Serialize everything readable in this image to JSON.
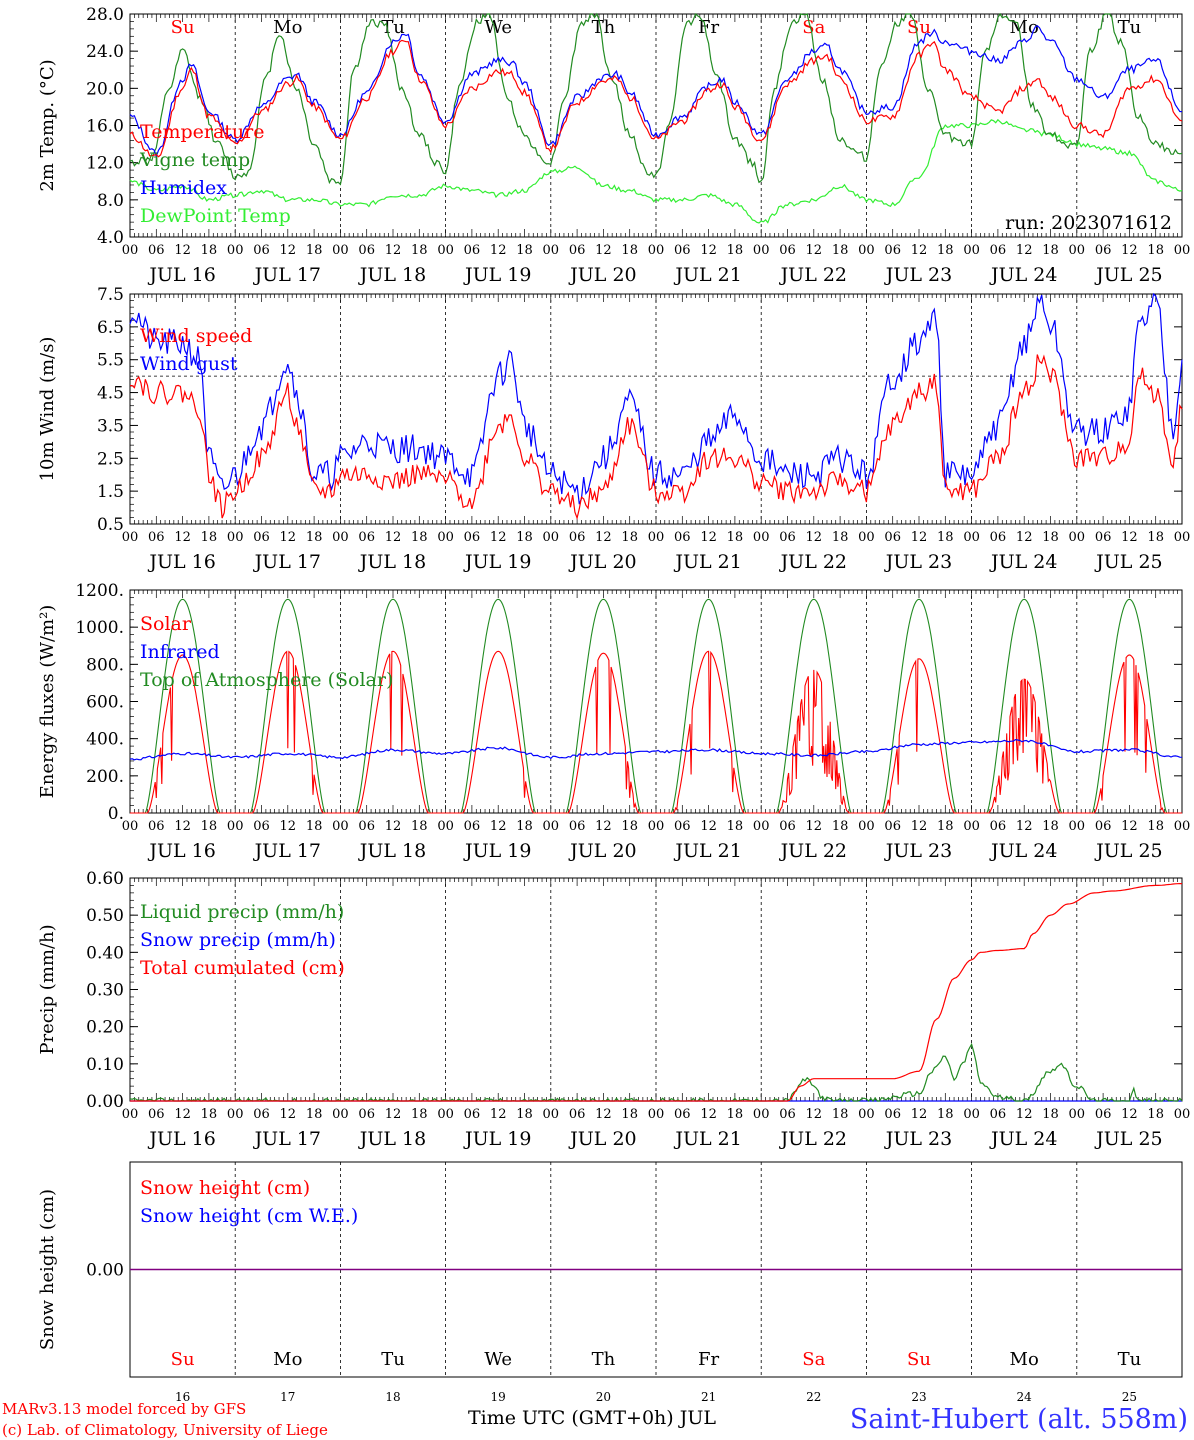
{
  "meta": {
    "run_label": "run: 2023071612",
    "footer_left_1": "MARv3.13 model forced by GFS",
    "footer_left_2": "(c) Lab. of Climatology, University of Liege",
    "footer_xlabel": "Time UTC (GMT+0h) JUL",
    "station": "Saint-Hubert (alt. 558m)"
  },
  "colors": {
    "red": "#ff0000",
    "green": "#228b22",
    "blue": "#0000ff",
    "lightgreen": "#33ee33",
    "purple": "#800080"
  },
  "days": {
    "weekday_labels": [
      "Su",
      "Mo",
      "Tu",
      "We",
      "Th",
      "Fr",
      "Sa",
      "Su",
      "Mo",
      "Tu"
    ],
    "weekend_flags": [
      true,
      false,
      false,
      false,
      false,
      false,
      true,
      true,
      false,
      false
    ],
    "date_labels": [
      "JUL 16",
      "JUL 17",
      "JUL 18",
      "JUL 19",
      "JUL 20",
      "JUL 21",
      "JUL 22",
      "JUL 23",
      "JUL 24",
      "JUL 25"
    ],
    "day_numbers": [
      "16",
      "17",
      "18",
      "19",
      "20",
      "21",
      "22",
      "23",
      "24",
      "25"
    ],
    "hour_labels": [
      "00",
      "06",
      "12",
      "18"
    ],
    "end_hour_label": "00"
  },
  "chart_data": [
    {
      "type": "line",
      "panel": "temperature",
      "ylabel": "2m Temp. (°C)",
      "ylim": [
        4.0,
        28.0
      ],
      "yticks": [
        "4.0",
        "8.0",
        "12.0",
        "16.0",
        "20.0",
        "24.0",
        "28.0"
      ],
      "x_unit": "hours since JUL 16 00 UTC",
      "series": [
        {
          "name": "Temperature",
          "color": "#ff0000",
          "x": [
            0,
            6,
            12,
            14,
            18,
            24,
            30,
            36,
            38,
            42,
            48,
            54,
            60,
            63,
            66,
            72,
            78,
            84,
            87,
            90,
            96,
            102,
            108,
            111,
            114,
            120,
            126,
            132,
            135,
            138,
            144,
            150,
            156,
            159,
            162,
            168,
            174,
            180,
            183,
            186,
            192,
            198,
            204,
            207,
            210,
            216,
            222,
            228,
            234,
            240
          ],
          "y": [
            15.0,
            12.5,
            20.0,
            22.0,
            17.0,
            14.0,
            17.5,
            20.5,
            21.0,
            18.0,
            14.5,
            19.0,
            24.0,
            25.3,
            21.0,
            16.0,
            20.0,
            21.8,
            21.5,
            19.5,
            13.5,
            18.5,
            20.8,
            21.0,
            19.0,
            14.5,
            16.5,
            19.8,
            20.5,
            18.0,
            14.5,
            20.5,
            23.0,
            23.5,
            21.0,
            16.5,
            17.0,
            23.5,
            25.0,
            22.0,
            19.0,
            17.5,
            20.0,
            21.0,
            19.0,
            16.0,
            15.0,
            20.0,
            21.0,
            16.5
          ]
        },
        {
          "name": "Vigne temp",
          "color": "#228b22",
          "x": [
            0,
            5,
            9,
            12,
            16,
            20,
            24,
            27,
            31,
            34,
            38,
            42,
            46,
            48,
            51,
            55,
            58,
            62,
            66,
            70,
            72,
            75,
            79,
            82,
            86,
            90,
            94,
            96,
            99,
            103,
            106,
            110,
            114,
            118,
            120,
            123,
            127,
            130,
            134,
            138,
            142,
            144,
            147,
            151,
            154,
            158,
            162,
            166,
            168,
            171,
            175,
            178,
            182,
            186,
            190,
            192,
            195,
            199,
            202,
            206,
            210,
            214,
            216,
            219,
            223,
            226,
            230,
            234,
            238,
            240
          ],
          "y": [
            12.0,
            12.5,
            20.0,
            24.0,
            19.0,
            14.0,
            10.5,
            11.0,
            21.0,
            26.0,
            20.0,
            14.0,
            10.0,
            10.0,
            22.0,
            27.0,
            27.0,
            20.0,
            15.0,
            12.0,
            11.0,
            20.0,
            27.0,
            28.0,
            19.0,
            15.0,
            12.5,
            12.0,
            19.0,
            27.0,
            28.0,
            21.0,
            15.0,
            11.0,
            10.5,
            16.0,
            27.0,
            28.0,
            21.0,
            14.5,
            12.0,
            10.0,
            20.0,
            27.0,
            28.0,
            21.0,
            14.5,
            13.0,
            12.5,
            22.0,
            27.0,
            28.0,
            20.0,
            15.0,
            14.0,
            14.0,
            24.0,
            28.0,
            27.0,
            18.0,
            15.0,
            14.0,
            14.0,
            24.0,
            28.0,
            25.0,
            17.0,
            14.0,
            13.0,
            13.0
          ]
        },
        {
          "name": "Humidex",
          "color": "#0000ff",
          "x": [
            0,
            6,
            12,
            14,
            18,
            24,
            30,
            36,
            38,
            42,
            48,
            54,
            60,
            63,
            66,
            72,
            78,
            84,
            87,
            90,
            96,
            102,
            108,
            111,
            114,
            120,
            126,
            132,
            135,
            138,
            144,
            150,
            156,
            159,
            162,
            168,
            174,
            180,
            183,
            186,
            192,
            198,
            204,
            207,
            210,
            216,
            222,
            228,
            234,
            240
          ],
          "y": [
            17.0,
            13.0,
            21.0,
            22.5,
            17.5,
            14.5,
            18.0,
            21.0,
            21.5,
            18.5,
            15.0,
            19.5,
            25.0,
            26.0,
            21.5,
            16.5,
            21.5,
            23.0,
            22.8,
            20.5,
            14.0,
            19.0,
            21.2,
            21.5,
            19.5,
            15.0,
            17.0,
            20.2,
            21.0,
            18.5,
            15.0,
            21.0,
            24.0,
            24.5,
            22.0,
            17.5,
            18.0,
            25.0,
            26.0,
            25.0,
            24.0,
            23.0,
            25.0,
            26.5,
            25.0,
            21.0,
            19.0,
            22.0,
            23.0,
            17.5
          ]
        },
        {
          "name": "DewPoint Temp",
          "color": "#33ee33",
          "x": [
            0,
            6,
            12,
            18,
            24,
            30,
            36,
            42,
            48,
            54,
            60,
            66,
            72,
            78,
            84,
            90,
            96,
            102,
            108,
            114,
            120,
            126,
            132,
            138,
            144,
            150,
            156,
            162,
            168,
            174,
            180,
            186,
            192,
            198,
            204,
            210,
            216,
            222,
            228,
            234,
            240
          ],
          "y": [
            10.0,
            9.0,
            9.5,
            8.0,
            8.5,
            9.0,
            8.0,
            8.0,
            7.5,
            7.5,
            8.5,
            8.5,
            9.5,
            9.0,
            8.5,
            9.0,
            11.0,
            11.5,
            9.5,
            9.0,
            8.0,
            8.0,
            8.5,
            7.5,
            5.5,
            7.5,
            8.0,
            9.5,
            8.0,
            7.5,
            10.5,
            16.0,
            16.0,
            16.5,
            15.5,
            15.0,
            14.0,
            13.5,
            13.0,
            10.0,
            9.0
          ]
        }
      ]
    },
    {
      "type": "line",
      "panel": "wind",
      "ylabel": "10m Wind (m/s)",
      "ylim": [
        0.5,
        7.5
      ],
      "yticks": [
        "0.5",
        "1.5",
        "2.5",
        "3.5",
        "4.5",
        "5.5",
        "6.5",
        "7.5"
      ],
      "reference_line": 5.0,
      "x_unit": "hours since JUL 16 00 UTC",
      "series": [
        {
          "name": "Wind speed",
          "color": "#ff0000",
          "x": [
            0,
            6,
            12,
            16,
            18,
            21,
            24,
            30,
            36,
            38,
            42,
            46,
            48,
            54,
            60,
            66,
            72,
            78,
            84,
            87,
            90,
            96,
            102,
            108,
            114,
            120,
            126,
            132,
            138,
            144,
            150,
            156,
            162,
            168,
            174,
            180,
            184,
            186,
            190,
            192,
            198,
            204,
            208,
            210,
            216,
            222,
            228,
            230,
            234,
            238,
            240
          ],
          "y": [
            5.0,
            4.5,
            4.5,
            4.0,
            2.0,
            1.0,
            1.5,
            2.5,
            4.5,
            3.5,
            1.5,
            1.5,
            2.0,
            2.0,
            1.8,
            2.0,
            1.8,
            1.2,
            3.5,
            3.8,
            2.5,
            1.5,
            1.0,
            1.5,
            3.5,
            1.5,
            1.5,
            2.5,
            2.5,
            1.8,
            1.5,
            1.5,
            1.8,
            1.5,
            3.5,
            4.5,
            4.8,
            1.5,
            1.5,
            1.5,
            2.5,
            4.5,
            5.5,
            5.0,
            2.5,
            2.5,
            3.0,
            5.0,
            4.5,
            2.5,
            4.0
          ]
        },
        {
          "name": "Wind gust",
          "color": "#0000ff",
          "x": [
            0,
            6,
            12,
            16,
            18,
            21,
            24,
            30,
            36,
            38,
            42,
            46,
            48,
            54,
            60,
            66,
            72,
            78,
            84,
            87,
            90,
            96,
            102,
            108,
            114,
            120,
            126,
            132,
            138,
            144,
            150,
            156,
            162,
            168,
            174,
            180,
            184,
            186,
            190,
            192,
            198,
            204,
            208,
            210,
            216,
            222,
            228,
            230,
            234,
            238,
            240
          ],
          "y": [
            7.0,
            6.0,
            6.0,
            5.5,
            2.5,
            1.5,
            2.0,
            3.5,
            5.5,
            4.5,
            2.0,
            2.0,
            2.5,
            3.0,
            2.8,
            2.8,
            2.5,
            2.0,
            5.0,
            5.5,
            3.5,
            2.0,
            1.5,
            2.5,
            4.2,
            2.0,
            2.0,
            3.0,
            3.8,
            2.5,
            2.0,
            2.0,
            2.5,
            2.0,
            5.0,
            6.0,
            6.8,
            2.0,
            2.0,
            2.0,
            3.5,
            6.0,
            7.3,
            6.5,
            3.3,
            3.3,
            4.0,
            6.5,
            7.3,
            3.5,
            5.5
          ]
        }
      ]
    },
    {
      "type": "line",
      "panel": "energy",
      "ylabel": "Energy fluxes (W/m²)",
      "ylim": [
        0,
        1200
      ],
      "yticks": [
        "0.",
        "200.",
        "400.",
        "600.",
        "800.",
        "1000.",
        "1200."
      ],
      "x_unit": "hours since JUL 16 00 UTC",
      "series": [
        {
          "name": "Solar",
          "color": "#ff0000",
          "daily_peak": [
            850,
            870,
            870,
            870,
            860,
            870,
            770,
            830,
            720,
            850
          ],
          "day_window_hours": [
            4,
            20
          ]
        },
        {
          "name": "Infrared",
          "color": "#0000ff",
          "x": [
            0,
            12,
            24,
            36,
            48,
            60,
            72,
            84,
            96,
            108,
            120,
            132,
            144,
            156,
            168,
            180,
            192,
            204,
            216,
            228,
            240
          ],
          "y": [
            290,
            320,
            300,
            320,
            300,
            340,
            320,
            350,
            300,
            320,
            330,
            340,
            320,
            310,
            330,
            370,
            380,
            390,
            330,
            340,
            300
          ]
        },
        {
          "name": "Top of Atmosphere (Solar)",
          "color": "#228b22",
          "daily_peak": [
            1150,
            1150,
            1150,
            1150,
            1150,
            1150,
            1150,
            1150,
            1150,
            1150
          ],
          "day_window_hours": [
            3.5,
            20.5
          ]
        }
      ]
    },
    {
      "type": "line",
      "panel": "precip",
      "ylabel": "Precip (mm/h)",
      "ylim": [
        0.0,
        0.6
      ],
      "yticks": [
        "0.00",
        "0.10",
        "0.20",
        "0.30",
        "0.40",
        "0.50",
        "0.60"
      ],
      "x_unit": "hours since JUL 16 00 UTC",
      "series": [
        {
          "name": "Liquid precip (mm/h)",
          "color": "#228b22",
          "x": [
            0,
            150,
            152,
            154,
            156,
            158,
            160,
            162,
            168,
            180,
            183,
            186,
            188,
            190,
            192,
            194,
            198,
            204,
            210,
            212,
            216,
            220,
            228,
            229,
            230,
            232,
            240
          ],
          "y": [
            0,
            0,
            0.03,
            0.06,
            0.04,
            0.01,
            0,
            0,
            0,
            0.02,
            0.08,
            0.12,
            0.06,
            0.1,
            0.15,
            0.05,
            0.01,
            0,
            0.08,
            0.1,
            0.04,
            0.0,
            0,
            0.03,
            0.0,
            0,
            0
          ]
        },
        {
          "name": "Snow precip (mm/h)",
          "color": "#0000ff",
          "x": [
            0,
            240
          ],
          "y": [
            0,
            0
          ]
        },
        {
          "name": "Total cumulated (cm)",
          "color": "#ff0000",
          "x": [
            0,
            150,
            153,
            156,
            168,
            174,
            180,
            184,
            188,
            192,
            194,
            198,
            204,
            206,
            210,
            214,
            220,
            224,
            234,
            240
          ],
          "y": [
            0,
            0,
            0.04,
            0.06,
            0.06,
            0.06,
            0.08,
            0.22,
            0.33,
            0.38,
            0.4,
            0.405,
            0.41,
            0.45,
            0.5,
            0.53,
            0.56,
            0.565,
            0.58,
            0.585
          ]
        }
      ]
    },
    {
      "type": "line",
      "panel": "snow",
      "ylabel": "Snow height (cm)",
      "yticks": [
        "0.00"
      ],
      "x_unit": "hours since JUL 16 00 UTC",
      "series": [
        {
          "name": "Snow height (cm)",
          "color": "#ff0000",
          "x": [
            0,
            240
          ],
          "y": [
            0,
            0
          ]
        },
        {
          "name": "Snow height (cm W.E.)",
          "color": "#0000ff",
          "x": [
            0,
            240
          ],
          "y": [
            0,
            0
          ]
        }
      ]
    }
  ]
}
